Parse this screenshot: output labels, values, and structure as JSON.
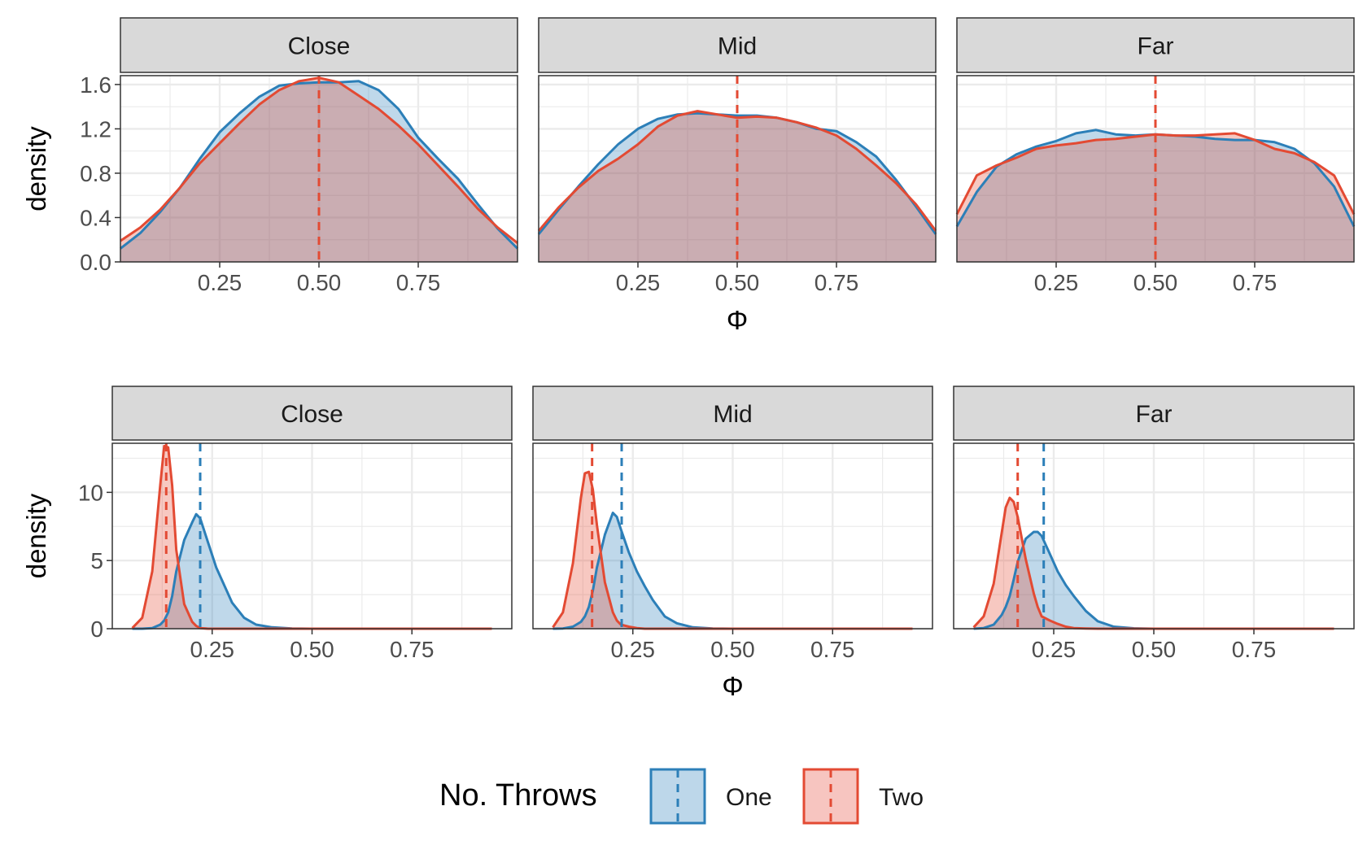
{
  "chart_data": [
    {
      "type": "area",
      "subtype": "density",
      "facets": [
        "Close",
        "Mid",
        "Far"
      ],
      "xlabel": "Φ",
      "ylabel": "density",
      "x_ticks": [
        "0.25",
        "0.50",
        "0.75"
      ],
      "y_ticks": [
        "0.0",
        "0.4",
        "0.8",
        "1.2",
        "1.6"
      ],
      "xlim": [
        0,
        1
      ],
      "ylim": [
        0,
        1.68
      ],
      "grid": true,
      "x": [
        0,
        0.05,
        0.1,
        0.15,
        0.2,
        0.25,
        0.3,
        0.35,
        0.4,
        0.45,
        0.5,
        0.55,
        0.6,
        0.65,
        0.7,
        0.75,
        0.8,
        0.85,
        0.9,
        0.95,
        1.0
      ],
      "panels": [
        {
          "facet": "Close",
          "series": [
            {
              "name": "One",
              "mean": 0.5,
              "values": [
                0.12,
                0.26,
                0.45,
                0.67,
                0.93,
                1.17,
                1.34,
                1.49,
                1.59,
                1.61,
                1.62,
                1.62,
                1.63,
                1.55,
                1.38,
                1.12,
                0.93,
                0.75,
                0.52,
                0.3,
                0.12
              ]
            },
            {
              "name": "Two",
              "mean": 0.5,
              "values": [
                0.19,
                0.31,
                0.47,
                0.67,
                0.89,
                1.07,
                1.25,
                1.42,
                1.55,
                1.63,
                1.66,
                1.62,
                1.5,
                1.38,
                1.23,
                1.06,
                0.87,
                0.68,
                0.48,
                0.31,
                0.17
              ]
            }
          ]
        },
        {
          "facet": "Mid",
          "series": [
            {
              "name": "One",
              "mean": 0.5,
              "values": [
                0.25,
                0.47,
                0.68,
                0.88,
                1.06,
                1.2,
                1.29,
                1.33,
                1.34,
                1.33,
                1.32,
                1.32,
                1.3,
                1.26,
                1.2,
                1.18,
                1.08,
                0.95,
                0.74,
                0.5,
                0.25
              ]
            },
            {
              "name": "Two",
              "mean": 0.5,
              "values": [
                0.28,
                0.49,
                0.67,
                0.82,
                0.93,
                1.06,
                1.22,
                1.32,
                1.36,
                1.33,
                1.3,
                1.31,
                1.3,
                1.26,
                1.21,
                1.14,
                1.02,
                0.87,
                0.71,
                0.52,
                0.28
              ]
            }
          ]
        },
        {
          "facet": "Far",
          "series": [
            {
              "name": "One",
              "mean": 0.5,
              "values": [
                0.32,
                0.63,
                0.86,
                0.97,
                1.04,
                1.09,
                1.16,
                1.19,
                1.15,
                1.14,
                1.15,
                1.14,
                1.13,
                1.11,
                1.1,
                1.1,
                1.08,
                1.02,
                0.89,
                0.68,
                0.32
              ]
            },
            {
              "name": "Two",
              "mean": 0.5,
              "values": [
                0.43,
                0.78,
                0.87,
                0.94,
                1.02,
                1.05,
                1.07,
                1.1,
                1.11,
                1.13,
                1.15,
                1.14,
                1.14,
                1.15,
                1.16,
                1.1,
                1.02,
                0.98,
                0.9,
                0.78,
                0.43
              ]
            }
          ]
        }
      ]
    },
    {
      "type": "area",
      "subtype": "density",
      "facets": [
        "Close",
        "Mid",
        "Far"
      ],
      "xlabel": "Φ",
      "ylabel": "density",
      "x_ticks": [
        "0.25",
        "0.50",
        "0.75"
      ],
      "y_ticks": [
        "0",
        "5",
        "10"
      ],
      "xlim": [
        0,
        1
      ],
      "ylim": [
        0,
        13.6
      ],
      "grid": true,
      "x": [
        0.05,
        0.075,
        0.1,
        0.12,
        0.13,
        0.14,
        0.15,
        0.16,
        0.18,
        0.2,
        0.21,
        0.22,
        0.24,
        0.26,
        0.28,
        0.3,
        0.33,
        0.36,
        0.4,
        0.45,
        0.5,
        0.6,
        0.75,
        0.95
      ],
      "panels": [
        {
          "facet": "Close",
          "series": [
            {
              "name": "One",
              "mean": 0.22,
              "values": [
                0,
                0,
                0.05,
                0.3,
                0.6,
                1.2,
                2.4,
                4.2,
                6.5,
                7.8,
                8.4,
                8.1,
                6.3,
                4.5,
                3.2,
                1.9,
                0.8,
                0.3,
                0.1,
                0.02,
                0,
                0,
                0,
                0
              ]
            },
            {
              "name": "Two",
              "mean": 0.135,
              "values": [
                0.05,
                0.8,
                4.2,
                10.5,
                13.4,
                13.3,
                10.5,
                5.8,
                1.8,
                0.5,
                0.2,
                0.05,
                0,
                0,
                0,
                0,
                0,
                0,
                0,
                0,
                0,
                0,
                0,
                0
              ]
            }
          ]
        },
        {
          "facet": "Mid",
          "series": [
            {
              "name": "One",
              "mean": 0.222,
              "values": [
                0,
                0.02,
                0.15,
                0.5,
                0.9,
                1.6,
                2.8,
                4.5,
                6.9,
                8.5,
                8.2,
                7.3,
                5.6,
                4.2,
                3.1,
                2.1,
                0.9,
                0.4,
                0.1,
                0.02,
                0,
                0,
                0,
                0
              ]
            },
            {
              "name": "Two",
              "mean": 0.148,
              "values": [
                0.1,
                1.2,
                4.8,
                9.6,
                11.4,
                11.5,
                10.2,
                7.6,
                3.4,
                1.2,
                0.6,
                0.3,
                0.15,
                0.05,
                0,
                0,
                0,
                0,
                0,
                0,
                0,
                0,
                0,
                0
              ]
            }
          ]
        },
        {
          "facet": "Far",
          "series": [
            {
              "name": "One",
              "mean": 0.225,
              "values": [
                0,
                0.05,
                0.3,
                1.0,
                1.6,
                2.4,
                3.6,
                4.9,
                6.6,
                7.1,
                7.1,
                6.8,
                5.5,
                4.2,
                3.2,
                2.4,
                1.3,
                0.55,
                0.15,
                0.03,
                0,
                0,
                0,
                0
              ]
            },
            {
              "name": "Two",
              "mean": 0.16,
              "values": [
                0.1,
                0.9,
                3.3,
                7.0,
                8.9,
                9.6,
                9.3,
                8.2,
                5.1,
                2.6,
                1.6,
                0.9,
                0.6,
                0.35,
                0.15,
                0.05,
                0.02,
                0,
                0,
                0,
                0,
                0,
                0,
                0
              ]
            }
          ]
        }
      ]
    }
  ],
  "legend": {
    "title": "No. Throws",
    "position": "bottom",
    "items": [
      {
        "label": "One",
        "line_color": "#2c7fb8",
        "fill_color": "#bdd7ea"
      },
      {
        "label": "Two",
        "line_color": "#e34a33",
        "fill_color": "#f7c5c0"
      }
    ]
  },
  "colors": {
    "one": "#2c7fb8",
    "two": "#e34a33",
    "strip_bg": "#d9d9d9",
    "grid": "#ebebeb",
    "panel_border": "#333333"
  }
}
